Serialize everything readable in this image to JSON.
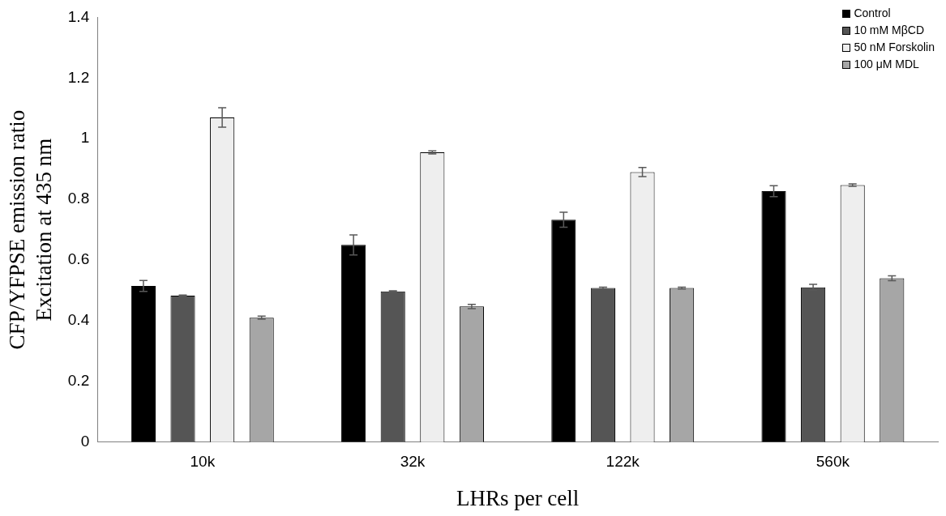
{
  "chart_data": {
    "type": "bar",
    "xlabel": "LHRs per cell",
    "ylabel": "CFP/YFPSE emission ratio\nExcitation at 435 nm",
    "categories": [
      "10k",
      "32k",
      "122k",
      "560k"
    ],
    "series": [
      {
        "name": "Control",
        "color": "#000000",
        "values": [
          0.515,
          0.65,
          0.733,
          0.827
        ],
        "errors": [
          0.018,
          0.033,
          0.025,
          0.018
        ]
      },
      {
        "name": "10 mM MβCD",
        "color": "#555555",
        "values": [
          0.483,
          0.497,
          0.508,
          0.51
        ],
        "errors": [
          0.002,
          0.002,
          0.003,
          0.01
        ]
      },
      {
        "name": "50 nM Forskolin",
        "color": "#eeeeee",
        "values": [
          1.07,
          0.955,
          0.89,
          0.847
        ],
        "errors": [
          0.032,
          0.005,
          0.015,
          0.004
        ]
      },
      {
        "name": "100 μM MDL",
        "color": "#a6a6a6",
        "values": [
          0.41,
          0.447,
          0.508,
          0.54
        ],
        "errors": [
          0.005,
          0.007,
          0.003,
          0.008
        ]
      }
    ],
    "ylim": [
      0,
      1.4
    ],
    "yticks": [
      0,
      0.2,
      0.4,
      0.6,
      0.8,
      1,
      1.2,
      1.4
    ],
    "grid": false,
    "legend": "top right"
  }
}
